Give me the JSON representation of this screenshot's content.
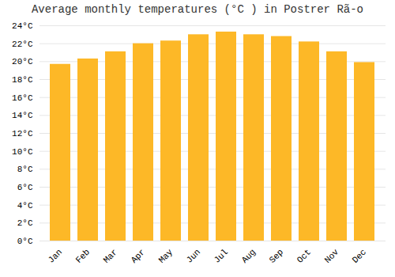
{
  "chart_data": {
    "type": "bar",
    "title": "Average monthly temperatures (°C ) in Postrer Rã-o",
    "categories": [
      "Jan",
      "Feb",
      "Mar",
      "Apr",
      "May",
      "Jun",
      "Jul",
      "Aug",
      "Sep",
      "Oct",
      "Nov",
      "Dec"
    ],
    "values": [
      19.7,
      20.3,
      21.1,
      22.0,
      22.3,
      23.0,
      23.3,
      23.0,
      22.8,
      22.2,
      21.1,
      19.9
    ],
    "color": "#FDB827",
    "ylim": [
      0,
      24
    ],
    "yticks": [
      {
        "value": 0,
        "label": "0°C"
      },
      {
        "value": 2,
        "label": "2°C"
      },
      {
        "value": 4,
        "label": "4°C"
      },
      {
        "value": 6,
        "label": "6°C"
      },
      {
        "value": 8,
        "label": "8°C"
      },
      {
        "value": 10,
        "label": "10°C"
      },
      {
        "value": 12,
        "label": "12°C"
      },
      {
        "value": 14,
        "label": "14°C"
      },
      {
        "value": 16,
        "label": "16°C"
      },
      {
        "value": 18,
        "label": "18°C"
      },
      {
        "value": 20,
        "label": "20°C"
      },
      {
        "value": 22,
        "label": "22°C"
      },
      {
        "value": 24,
        "label": "24°C"
      }
    ],
    "grid": true
  }
}
